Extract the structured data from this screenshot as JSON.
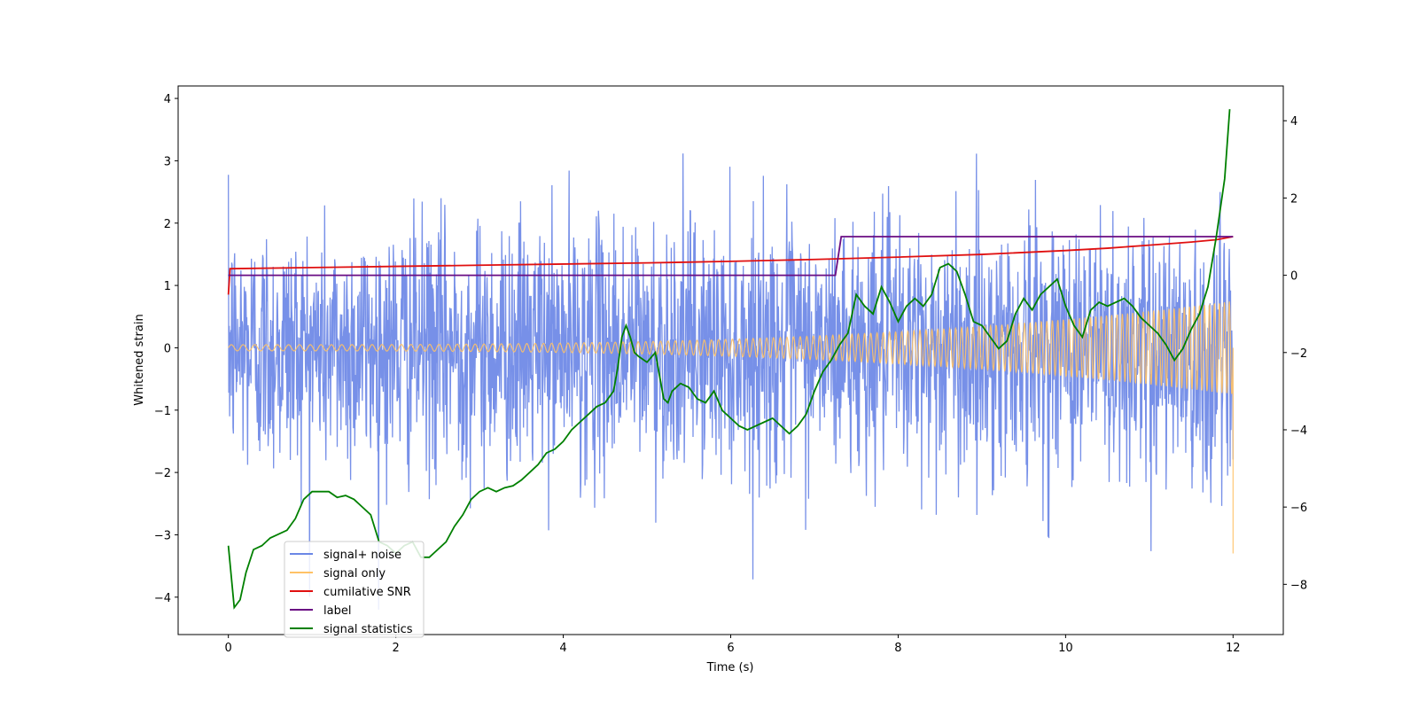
{
  "chart_data": {
    "type": "line",
    "xlabel": "Time (s)",
    "ylabel": "Whitened strain",
    "xlim": [
      -0.6,
      12.6
    ],
    "ylim": [
      -4.6,
      4.2
    ],
    "y2lim": [
      -9.3,
      4.9
    ],
    "grid": false,
    "legend_position": "lower-left",
    "x_ticks": [
      0,
      2,
      4,
      6,
      8,
      10,
      12
    ],
    "y_ticks": [
      -4,
      -3,
      -2,
      -1,
      0,
      1,
      2,
      3,
      4
    ],
    "y2_ticks": [
      -8,
      -6,
      -4,
      -2,
      0,
      2,
      4
    ],
    "tick_labels": {
      "x": [
        "0",
        "2",
        "4",
        "6",
        "8",
        "10",
        "12"
      ],
      "y": [
        "−4",
        "−3",
        "−2",
        "−1",
        "0",
        "1",
        "2",
        "3",
        "4"
      ],
      "y2": [
        "−8",
        "−6",
        "−4",
        "−2",
        "0",
        "2",
        "4"
      ]
    },
    "series": [
      {
        "name": "signal+ noise",
        "axis": "left",
        "color": "#6b87e6",
        "description_level": "noise band approx ±2 with spikes to ±3.8",
        "noise_sigma": 1.0,
        "x_range": [
          0,
          12
        ]
      },
      {
        "name": "signal only",
        "axis": "left",
        "color": "#ffc266",
        "x_range": [
          0,
          12
        ],
        "amplitude_start": 0.05,
        "amplitude_end": 0.75,
        "end_spike": -3.3
      },
      {
        "name": "cumilative SNR",
        "axis": "right",
        "color": "#e01010",
        "x": [
          0,
          0.02,
          1,
          2,
          3,
          4,
          5,
          6,
          7,
          8,
          9,
          10,
          10.5,
          11,
          11.5,
          11.8,
          12
        ],
        "y": [
          -0.5,
          0.17,
          0.2,
          0.23,
          0.26,
          0.29,
          0.32,
          0.36,
          0.41,
          0.47,
          0.54,
          0.64,
          0.7,
          0.78,
          0.86,
          0.92,
          1.0
        ]
      },
      {
        "name": "label",
        "axis": "right",
        "color": "#6a0d83",
        "x": [
          0,
          7.25,
          7.32,
          12
        ],
        "y": [
          0,
          0,
          1,
          1
        ]
      },
      {
        "name": "signal statistics",
        "axis": "right",
        "color": "#008000",
        "x": [
          0,
          0.07,
          0.14,
          0.21,
          0.3,
          0.4,
          0.5,
          0.6,
          0.7,
          0.8,
          0.9,
          1.0,
          1.1,
          1.2,
          1.3,
          1.4,
          1.5,
          1.6,
          1.7,
          1.8,
          1.9,
          2.0,
          2.1,
          2.2,
          2.3,
          2.4,
          2.5,
          2.6,
          2.7,
          2.8,
          2.9,
          3.0,
          3.1,
          3.2,
          3.3,
          3.4,
          3.5,
          3.6,
          3.7,
          3.8,
          3.9,
          4.0,
          4.1,
          4.2,
          4.3,
          4.4,
          4.5,
          4.6,
          4.65,
          4.7,
          4.75,
          4.8,
          4.85,
          4.9,
          5.0,
          5.1,
          5.2,
          5.25,
          5.3,
          5.4,
          5.5,
          5.6,
          5.7,
          5.8,
          5.9,
          6.0,
          6.1,
          6.2,
          6.3,
          6.4,
          6.5,
          6.6,
          6.7,
          6.8,
          6.9,
          7.0,
          7.1,
          7.2,
          7.3,
          7.4,
          7.5,
          7.6,
          7.7,
          7.8,
          7.9,
          8.0,
          8.1,
          8.2,
          8.3,
          8.4,
          8.5,
          8.6,
          8.7,
          8.8,
          8.9,
          9.0,
          9.1,
          9.2,
          9.3,
          9.4,
          9.5,
          9.6,
          9.7,
          9.8,
          9.9,
          10.0,
          10.1,
          10.2,
          10.3,
          10.4,
          10.5,
          10.6,
          10.7,
          10.8,
          10.9,
          11.0,
          11.1,
          11.2,
          11.3,
          11.4,
          11.5,
          11.6,
          11.7,
          11.8,
          11.9,
          11.96
        ],
        "y": [
          -7.0,
          -8.6,
          -8.4,
          -7.7,
          -7.1,
          -7.0,
          -6.8,
          -6.7,
          -6.6,
          -6.3,
          -5.8,
          -5.6,
          -5.6,
          -5.6,
          -5.75,
          -5.7,
          -5.8,
          -6.0,
          -6.2,
          -6.9,
          -7.0,
          -7.2,
          -7.0,
          -6.9,
          -7.3,
          -7.3,
          -7.1,
          -6.9,
          -6.5,
          -6.2,
          -5.8,
          -5.6,
          -5.5,
          -5.6,
          -5.5,
          -5.45,
          -5.3,
          -5.1,
          -4.9,
          -4.6,
          -4.5,
          -4.3,
          -4.0,
          -3.8,
          -3.6,
          -3.4,
          -3.3,
          -3.0,
          -2.4,
          -1.6,
          -1.3,
          -1.6,
          -2.0,
          -2.1,
          -2.25,
          -2.0,
          -3.2,
          -3.3,
          -3.0,
          -2.8,
          -2.9,
          -3.2,
          -3.3,
          -3.0,
          -3.5,
          -3.7,
          -3.9,
          -4.0,
          -3.9,
          -3.8,
          -3.7,
          -3.9,
          -4.1,
          -3.9,
          -3.6,
          -3.0,
          -2.5,
          -2.2,
          -1.8,
          -1.5,
          -0.5,
          -0.8,
          -1.0,
          -0.3,
          -0.7,
          -1.2,
          -0.8,
          -0.6,
          -0.8,
          -0.5,
          0.2,
          0.3,
          0.1,
          -0.5,
          -1.2,
          -1.3,
          -1.6,
          -1.9,
          -1.7,
          -1.0,
          -0.6,
          -0.9,
          -0.5,
          -0.3,
          -0.1,
          -0.8,
          -1.3,
          -1.6,
          -0.9,
          -0.7,
          -0.8,
          -0.7,
          -0.6,
          -0.8,
          -1.1,
          -1.3,
          -1.5,
          -1.8,
          -2.2,
          -1.9,
          -1.4,
          -1.0,
          -0.3,
          1.0,
          2.5,
          4.3
        ]
      }
    ]
  }
}
